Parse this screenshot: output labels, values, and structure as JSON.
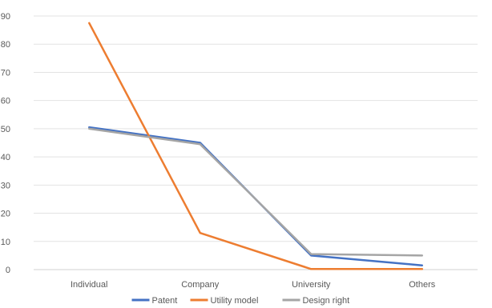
{
  "chart_data": {
    "type": "line",
    "title": "",
    "xlabel": "",
    "ylabel": "",
    "categories": [
      "Individual",
      "Company",
      "University",
      "Others"
    ],
    "ylim": [
      0,
      90
    ],
    "yticks": [
      0,
      10,
      20,
      30,
      40,
      50,
      60,
      70,
      80,
      90
    ],
    "grid": true,
    "legend": "bottom",
    "series": [
      {
        "name": "Patent",
        "color": "#4472C4",
        "values": [
          50.5,
          45,
          5,
          1.5
        ]
      },
      {
        "name": "Utility model",
        "color": "#ED7D31",
        "values": [
          87.5,
          13,
          0.2,
          0.2
        ]
      },
      {
        "name": "Design right",
        "color": "#A5A5A5",
        "values": [
          50,
          44.5,
          5.5,
          5
        ]
      }
    ]
  }
}
